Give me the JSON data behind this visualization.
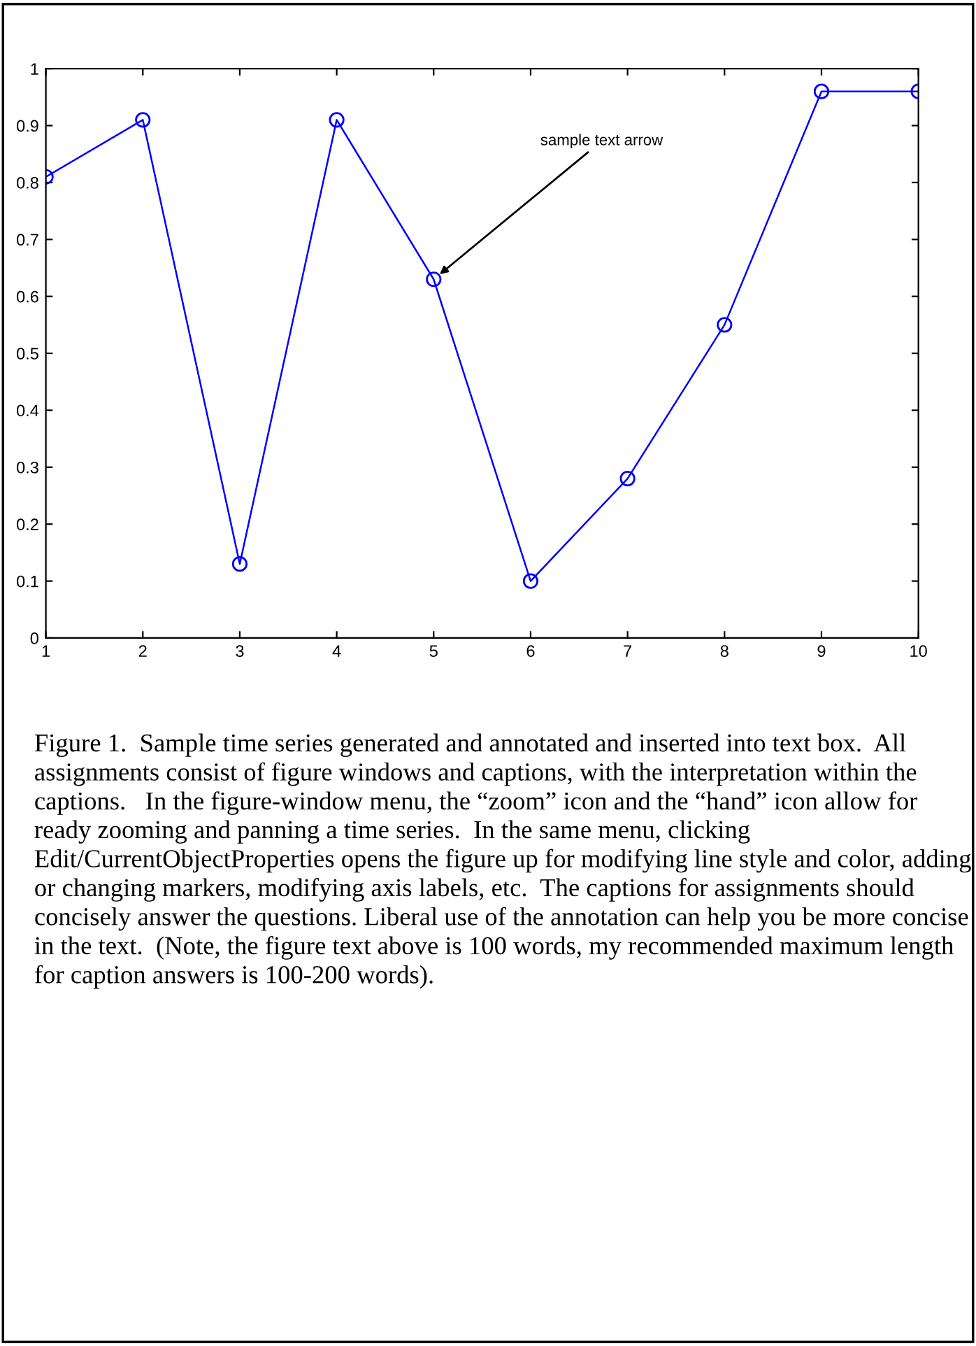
{
  "chart_data": {
    "type": "line",
    "x": [
      1,
      2,
      3,
      4,
      5,
      6,
      7,
      8,
      9,
      10
    ],
    "series": [
      {
        "color": "#0000ff",
        "values": [
          0.81,
          0.91,
          0.13,
          0.91,
          0.63,
          0.1,
          0.28,
          0.55,
          0.96,
          0.96
        ]
      }
    ],
    "marker": "circle",
    "line_style": "solid",
    "grid": false,
    "legend": false,
    "xlim": [
      1,
      10
    ],
    "xticks": [
      1,
      2,
      3,
      4,
      5,
      6,
      7,
      8,
      9,
      10
    ],
    "ylim": [
      0,
      1
    ],
    "yticks": [
      0,
      0.1,
      0.2,
      0.3,
      0.4,
      0.5,
      0.6,
      0.7,
      0.8,
      0.9,
      1
    ],
    "annotations": [
      {
        "text": "sample text arrow",
        "x": 5,
        "y": 0.63
      },
      "Figure 1.  Sample time series generated and annotated and inserted into text box.  All assignments consist of figure windows and captions, with the interpretation within the captions.   In the figure-window menu, the “zoom” icon and the “hand” icon allow for ready zooming and panning a time series.  In the same menu, clicking  Edit/CurrentObjectProperties opens the figure up for modifying line style and color, adding or changing markers, modifying axis labels, etc.  The captions for assignments should concisely answer the questions. Liberal use of the annotation can help you be more concise in the text.  (Note, the figure text above is 100 words, my recommended maximum length for caption answers is 100-200 words)."
    ]
  }
}
